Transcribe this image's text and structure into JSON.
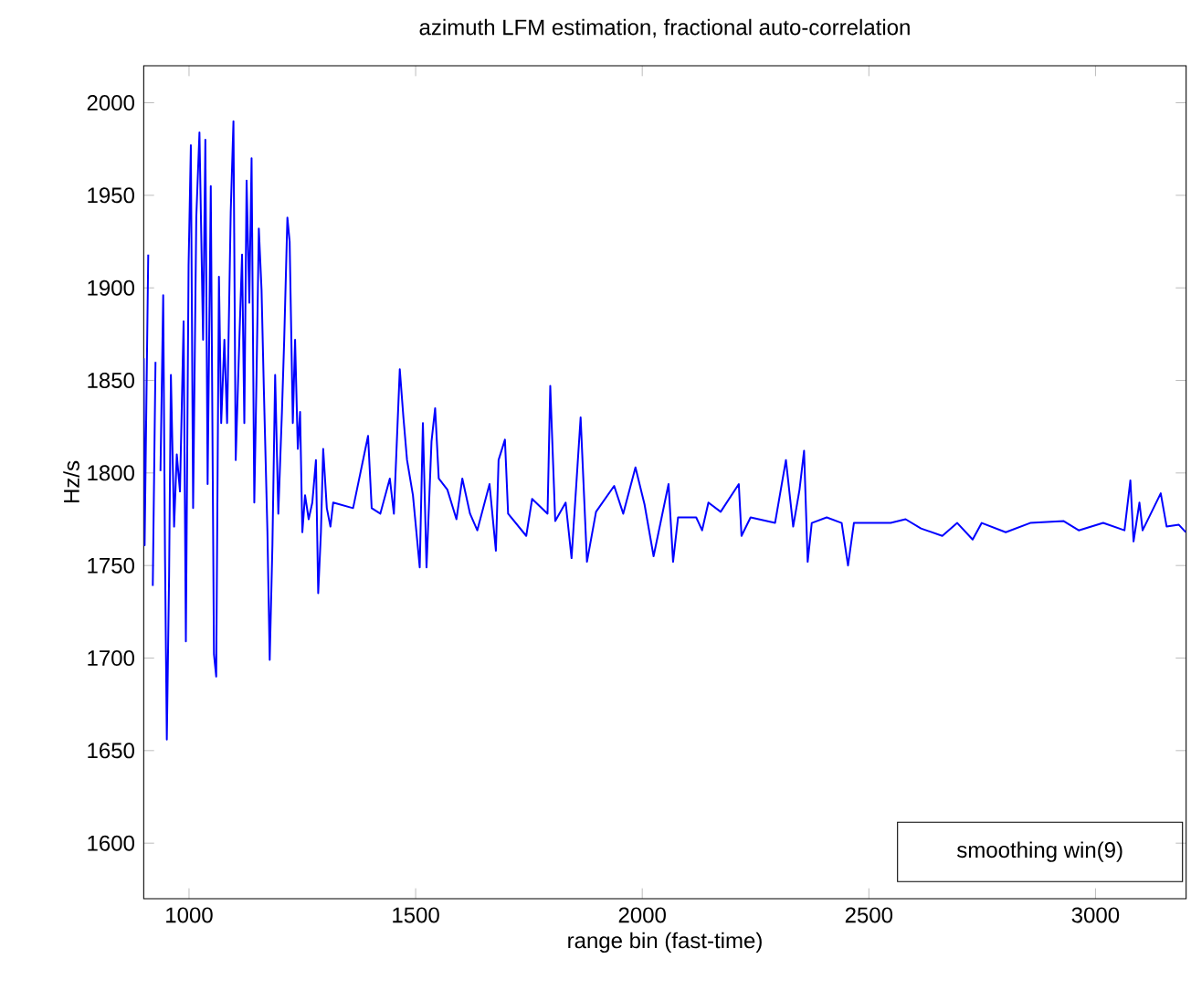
{
  "chart_data": {
    "type": "line",
    "title": "azimuth LFM estimation, fractional auto-correlation",
    "xlabel": "range bin (fast-time)",
    "ylabel": "Hz/s",
    "annotations": [
      "smoothing win(9)"
    ],
    "xlim": [
      900,
      3200
    ],
    "ylim": [
      1570,
      2020
    ],
    "xticks": [
      1000,
      1500,
      2000,
      2500,
      3000
    ],
    "yticks": [
      1600,
      1650,
      1700,
      1750,
      1800,
      1850,
      1900,
      1950,
      2000
    ],
    "grid": false,
    "marker": "none",
    "line_style": "solid",
    "series": [
      {
        "color": "#0000ff",
        "x": [
          900,
          902,
          910,
          916,
          920,
          926,
          933,
          937,
          943,
          947,
          951,
          956,
          960,
          967,
          973,
          980,
          988,
          993,
          999,
          1004,
          1009,
          1016,
          1023,
          1031,
          1036,
          1041,
          1048,
          1055,
          1060,
          1066,
          1071,
          1078,
          1084,
          1092,
          1098,
          1103,
          1111,
          1117,
          1122,
          1127,
          1133,
          1138,
          1144,
          1149,
          1154,
          1160,
          1165,
          1173,
          1178,
          1184,
          1190,
          1197,
          1205,
          1210,
          1217,
          1222,
          1229,
          1234,
          1240,
          1245,
          1250,
          1256,
          1264,
          1272,
          1280,
          1285,
          1291,
          1296,
          1304,
          1312,
          1318,
          1362,
          1395,
          1403,
          1422,
          1443,
          1452,
          1465,
          1473,
          1481,
          1494,
          1509,
          1516,
          1524,
          1535,
          1543,
          1551,
          1570,
          1590,
          1603,
          1620,
          1636,
          1663,
          1677,
          1683,
          1697,
          1704,
          1744,
          1757,
          1791,
          1797,
          1808,
          1831,
          1844,
          1864,
          1878,
          1898,
          1938,
          1958,
          1985,
          2005,
          2025,
          2058,
          2068,
          2079,
          2119,
          2132,
          2146,
          2173,
          2213,
          2219,
          2239,
          2293,
          2317,
          2333,
          2347,
          2357,
          2365,
          2374,
          2407,
          2440,
          2454,
          2467,
          2548,
          2581,
          2615,
          2662,
          2695,
          2729,
          2749,
          2802,
          2856,
          2930,
          2963,
          3017,
          3064,
          3077,
          3084,
          3097,
          3104,
          3144,
          3157,
          3184,
          3199
        ],
        "values": [
          1862,
          1761,
          1918,
          null,
          1739,
          1860,
          null,
          1801,
          1896,
          1755,
          1656,
          1744,
          1853,
          1771,
          1810,
          1790,
          1882,
          1709,
          1912,
          1977,
          1781,
          1938,
          1984,
          1872,
          1980,
          1794,
          1955,
          1702,
          1690,
          1906,
          1827,
          1872,
          1827,
          1941,
          1990,
          1807,
          1872,
          1918,
          1827,
          1958,
          1892,
          1970,
          1784,
          1853,
          1932,
          1899,
          1846,
          1768,
          1699,
          1761,
          1853,
          1778,
          1833,
          1872,
          1938,
          1925,
          1827,
          1872,
          1813,
          1833,
          1768,
          1788,
          1775,
          1784,
          1807,
          1735,
          1768,
          1813,
          1781,
          1771,
          1784,
          1781,
          1820,
          1781,
          1778,
          1797,
          1778,
          1856,
          1830,
          1807,
          1788,
          1749,
          1827,
          1749,
          1817,
          1835,
          1797,
          1791,
          1775,
          1797,
          1778,
          1769,
          1794,
          1758,
          1807,
          1818,
          1778,
          1766,
          1786,
          1778,
          1847,
          1774,
          1784,
          1754,
          1830,
          1752,
          1779,
          1793,
          1778,
          1803,
          1783,
          1755,
          1794,
          1752,
          1776,
          1776,
          1769,
          1784,
          1779,
          1794,
          1766,
          1776,
          1773,
          1807,
          1771,
          1791,
          1812,
          1752,
          1773,
          1776,
          1773,
          1750,
          1773,
          1773,
          1775,
          1770,
          1766,
          1773,
          1764,
          1773,
          1768,
          1773,
          1774,
          1769,
          1773,
          1769,
          1796,
          1763,
          1784,
          1769,
          1789,
          1771,
          1772,
          1768
        ]
      }
    ]
  }
}
